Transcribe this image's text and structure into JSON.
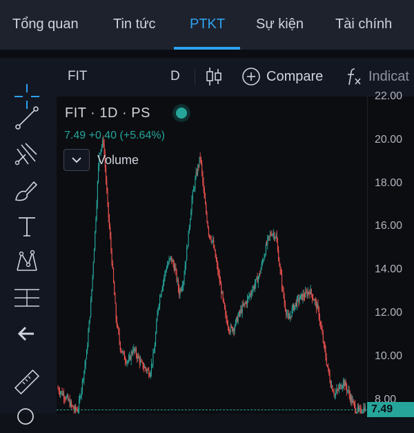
{
  "tabs": [
    {
      "label": "Tổng quan"
    },
    {
      "label": "Tin tức"
    },
    {
      "label": "PTKT",
      "active": true
    },
    {
      "label": "Sự kiện"
    },
    {
      "label": "Tài chính"
    }
  ],
  "toolbar": {
    "symbol": "FIT",
    "interval": "D",
    "compare_label": "Compare",
    "indicators_label": "Indicat",
    "icons": [
      "bar-style-candles-icon",
      "plus-circle-icon",
      "fx-icon"
    ]
  },
  "sidebar": {
    "tools": [
      "crosshair-icon",
      "trend-line-icon",
      "pitchfork-icon",
      "brush-icon",
      "text-icon",
      "pattern-icon",
      "fib-retracement-icon",
      "arrow-back-icon",
      "ruler-icon",
      "magnify-icon"
    ]
  },
  "legend": {
    "title": "FIT · 1D · PS",
    "price": "7.49",
    "change": "+0.40",
    "change_pct": "(+5.64%)",
    "volume_label": "Volume"
  },
  "colors": {
    "up": "#26a69a",
    "down": "#ef5350",
    "accent": "#2ea3f2",
    "background": "#0b0d11"
  },
  "chart_data": {
    "type": "candlestick",
    "symbol": "FIT",
    "interval": "1D",
    "last_price": 7.49,
    "last_price_label": "7.49",
    "y_ticks": [
      "22.00",
      "20.00",
      "18.00",
      "16.00",
      "14.00",
      "12.00",
      "10.00",
      "8.00"
    ],
    "ylim": [
      7.4,
      22.0
    ],
    "series": [
      {
        "values": [
          8.6,
          8.4,
          8.2,
          7.9,
          7.6,
          7.6,
          8.9,
          10.2,
          12.5,
          15.8,
          19.5,
          20.0,
          17.0,
          14.5,
          11.8,
          10.5,
          10.0,
          9.8,
          10.4,
          10.1,
          9.7,
          9.5,
          9.3,
          10.2,
          12.4,
          13.4,
          14.2,
          14.6,
          14.1,
          13.0,
          13.6,
          15.3,
          17.3,
          18.4,
          19.3,
          17.3,
          15.8,
          15.3,
          14.2,
          13.1,
          11.9,
          11.3,
          11.4,
          11.9,
          12.3,
          12.6,
          13.0,
          13.4,
          13.8,
          14.6,
          15.4,
          15.8,
          15.6,
          14.0,
          12.5,
          11.7,
          12.3,
          12.6,
          12.8,
          12.9,
          13.1,
          12.7,
          12.2,
          11.0,
          9.8,
          8.8,
          8.3,
          8.6,
          8.9,
          8.5,
          8.0,
          7.6,
          7.5,
          7.7,
          7.49
        ]
      }
    ]
  }
}
